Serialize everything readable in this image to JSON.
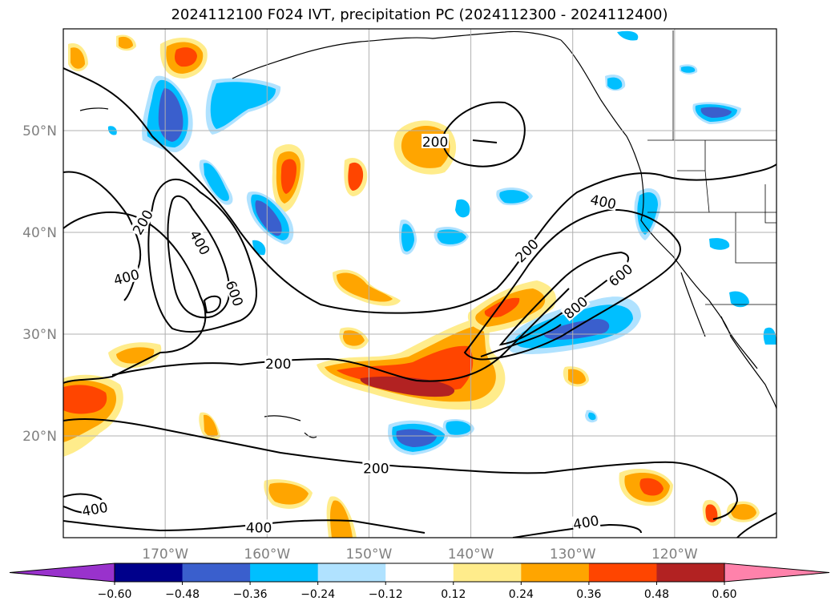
{
  "title": "2024112100 F024 IVT, precipitation PC (2024112300 - 2024112400)",
  "map": {
    "lon_range": [
      -180,
      -110
    ],
    "lat_range": [
      10,
      60
    ],
    "lat_ticks": [
      {
        "value": 20,
        "label": "20°N"
      },
      {
        "value": 30,
        "label": "30°N"
      },
      {
        "value": 40,
        "label": "40°N"
      },
      {
        "value": 50,
        "label": "50°N"
      }
    ],
    "lon_ticks": [
      {
        "value": -170,
        "label": "170°W"
      },
      {
        "value": -160,
        "label": "160°W"
      },
      {
        "value": -150,
        "label": "150°W"
      },
      {
        "value": -140,
        "label": "140°W"
      },
      {
        "value": -130,
        "label": "130°W"
      },
      {
        "value": -120,
        "label": "120°W"
      }
    ],
    "grid": true,
    "ivt_contour_labels": [
      {
        "text": "200",
        "lon": -143.5,
        "lat": 48.9,
        "rot": 0
      },
      {
        "text": "200",
        "lon": -172.2,
        "lat": 41.0,
        "rot": -60
      },
      {
        "text": "400",
        "lon": -173.8,
        "lat": 35.6,
        "rot": -15
      },
      {
        "text": "400",
        "lon": -166.6,
        "lat": 39.0,
        "rot": 60
      },
      {
        "text": "600",
        "lon": -163.2,
        "lat": 34.0,
        "rot": 70
      },
      {
        "text": "200",
        "lon": -158.9,
        "lat": 27.1,
        "rot": 0
      },
      {
        "text": "200",
        "lon": -134.5,
        "lat": 38.2,
        "rot": -45
      },
      {
        "text": "400",
        "lon": -127.0,
        "lat": 43.0,
        "rot": 12
      },
      {
        "text": "600",
        "lon": -125.3,
        "lat": 35.8,
        "rot": -40
      },
      {
        "text": "800",
        "lon": -129.7,
        "lat": 32.6,
        "rot": -40
      },
      {
        "text": "200",
        "lon": -149.3,
        "lat": 16.8,
        "rot": 0
      },
      {
        "text": "400",
        "lon": -176.9,
        "lat": 12.8,
        "rot": -10
      },
      {
        "text": "400",
        "lon": -160.8,
        "lat": 11.0,
        "rot": 0
      },
      {
        "text": "400",
        "lon": -128.7,
        "lat": 11.5,
        "rot": -10
      }
    ]
  },
  "colorbar": {
    "tick_labels": [
      "−0.60",
      "−0.48",
      "−0.36",
      "−0.24",
      "−0.12",
      "0.12",
      "0.24",
      "0.36",
      "0.48",
      "0.60"
    ],
    "levels": [
      -0.6,
      -0.48,
      -0.36,
      -0.24,
      -0.12,
      0.12,
      0.24,
      0.36,
      0.48,
      0.6
    ],
    "under_color": "#9932cc",
    "bin_colors": [
      "#00008b",
      "#3a5fcd",
      "#00bfff",
      "#b0e2ff",
      "#ffffff",
      "#ffec8b",
      "#ffa500",
      "#ff4500",
      "#b22222"
    ],
    "over_color": "#ff82ab"
  }
}
